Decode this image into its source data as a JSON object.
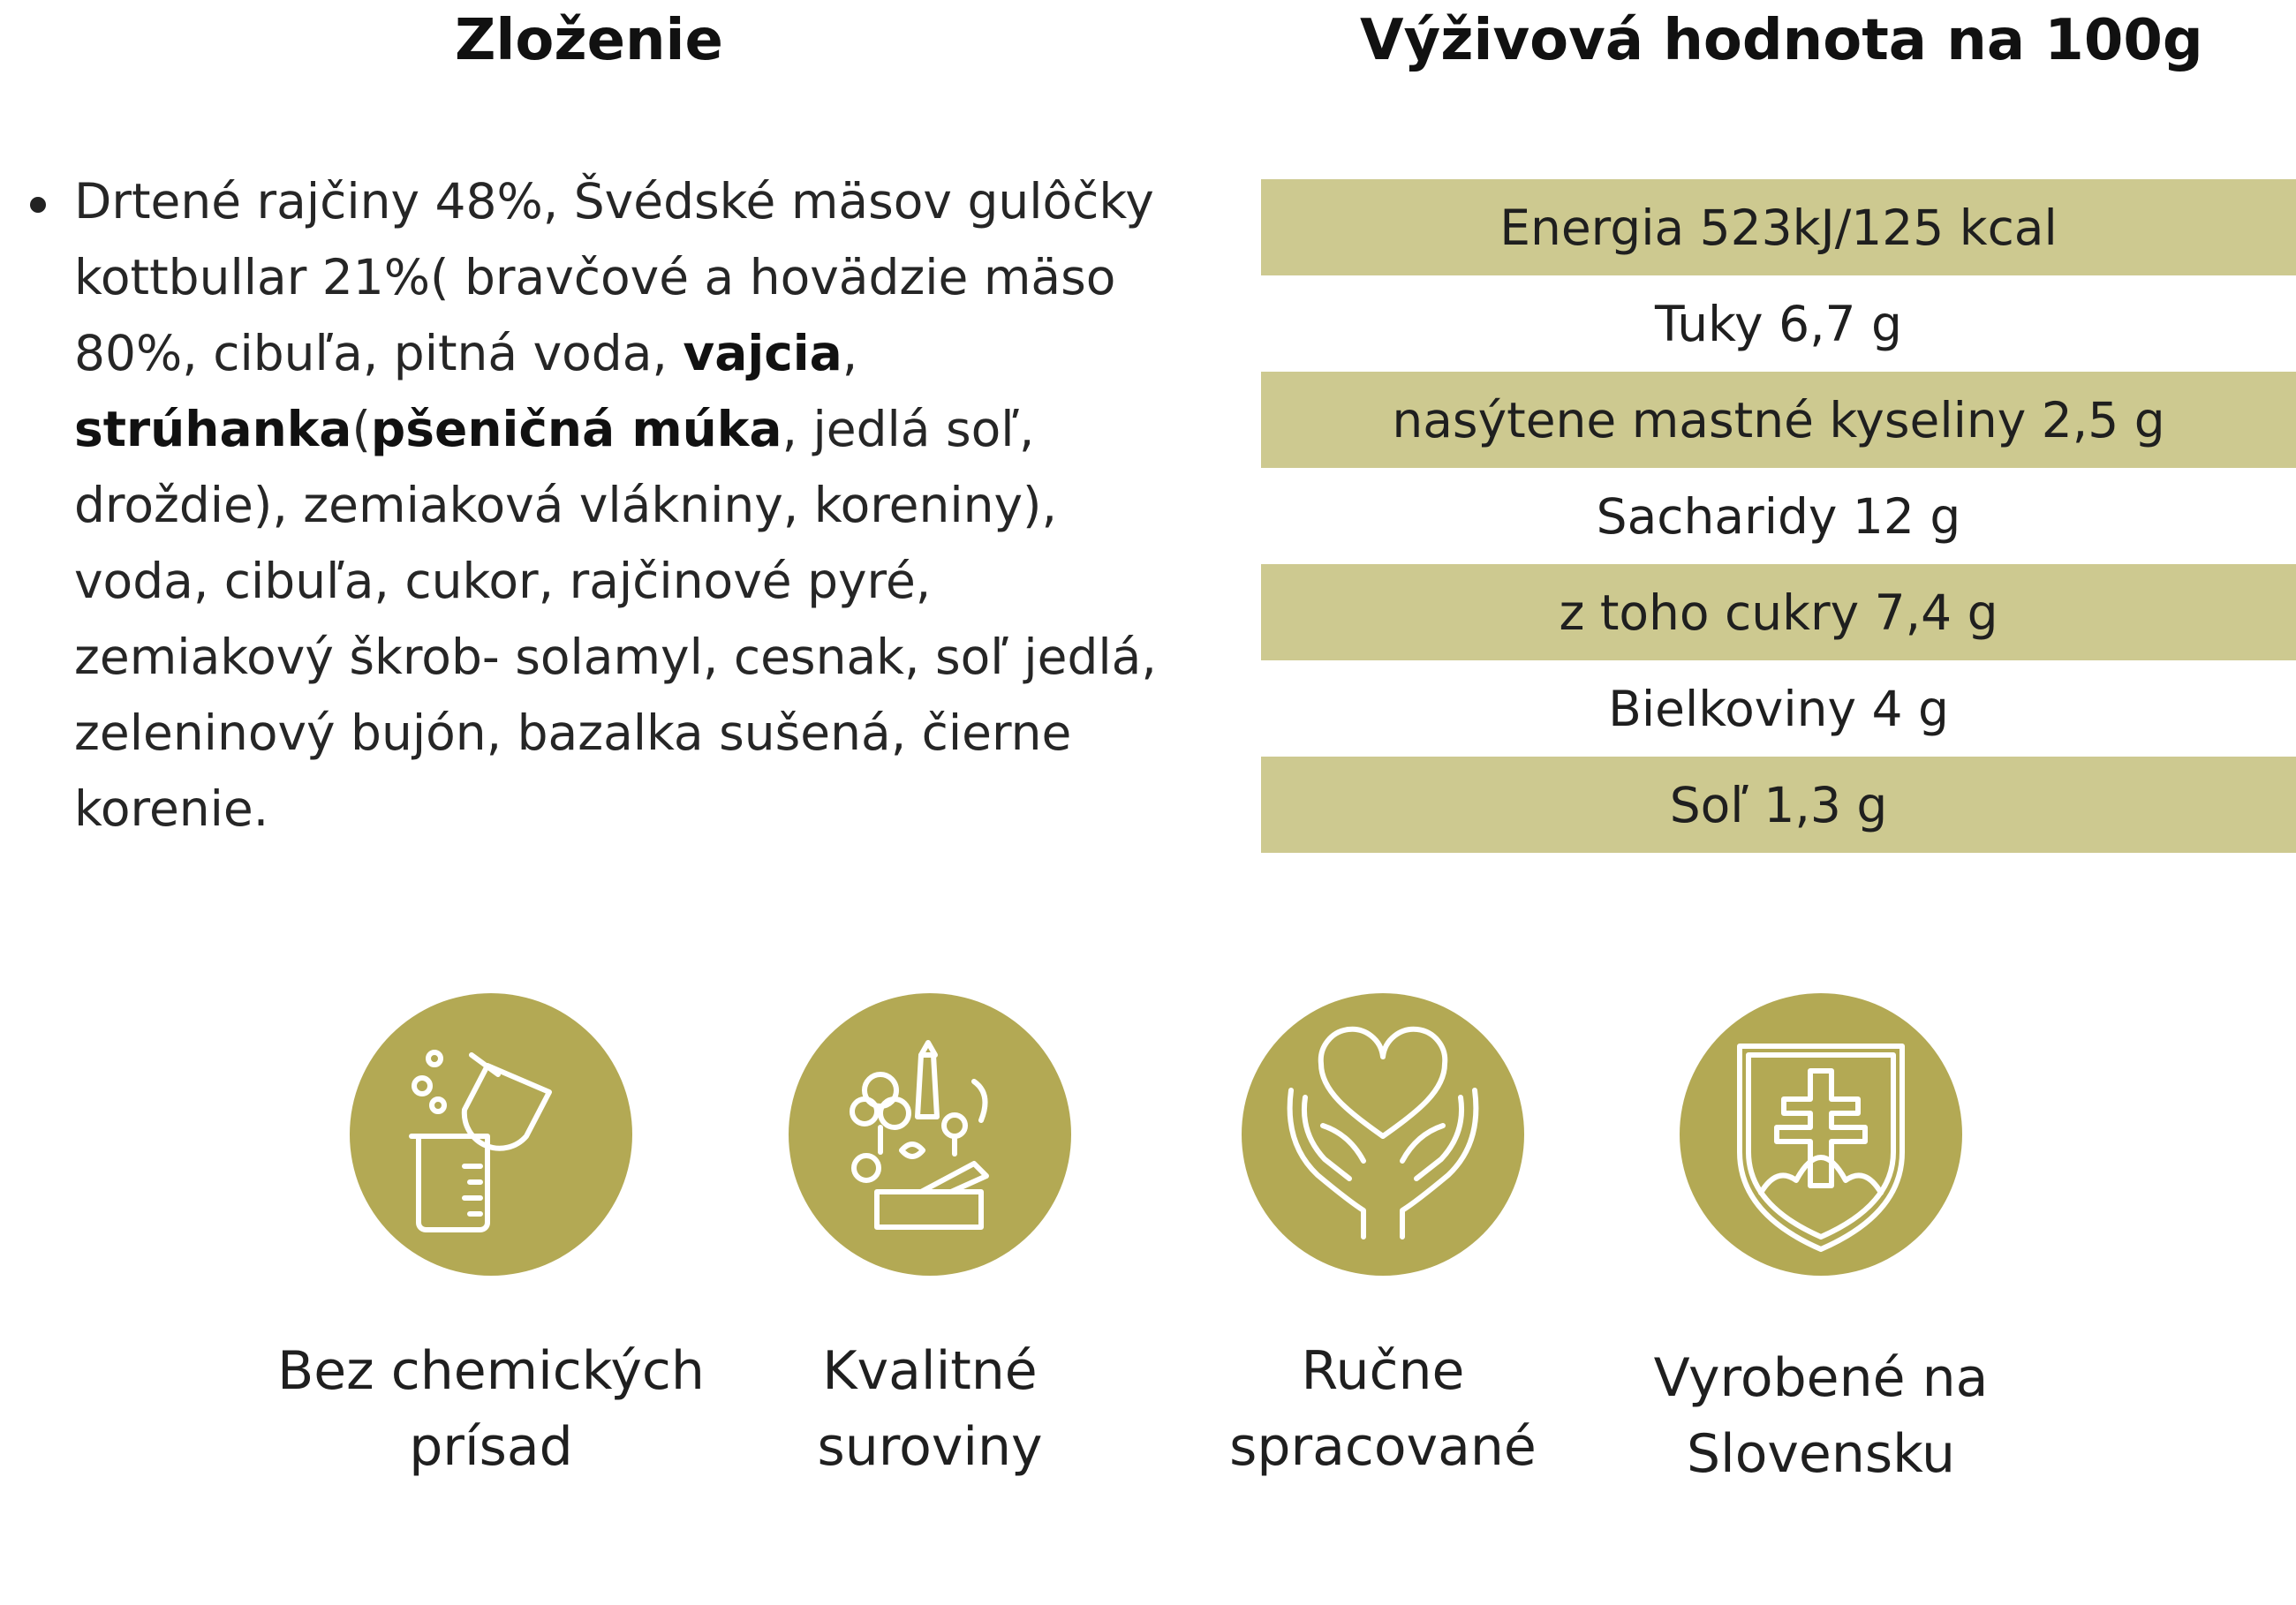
{
  "headings": {
    "ingredients": "Zloženie",
    "nutrition": "Výživová hodnota na 100g"
  },
  "ingredients": {
    "parts": [
      "Drtené rajčiny 48%, Švédské mäsov gulôčky kottbullar 21%( bravčové a hovädzie mäso 80%, cibuľa, pitná voda, ",
      "vajcia",
      ", ",
      "strúhanka",
      "(",
      "pšeničná múka",
      ", jedlá soľ, droždie), zemiaková vlákniny, koreniny), voda, cibuľa, cukor, rajčinové pyré, zemiakový škrob- solamyl, cesnak, soľ jedlá, zeleninový bujón, bazalka sušená, čierne korenie."
    ]
  },
  "nutrition": {
    "rows": [
      "Energia 523kJ/125 kcal",
      "Tuky 6,7 g",
      "nasýtene mastné kyseliny 2,5 g",
      "Sacharidy 12 g",
      "z toho cukry 7,4 g",
      "Bielkoviny 4 g",
      "Soľ 1,3 g"
    ]
  },
  "features": [
    {
      "icon": "chemistry-icon",
      "line1": "Bez chemických",
      "line2": "prísad"
    },
    {
      "icon": "vegetables-icon",
      "line1": "Kvalitné",
      "line2": "suroviny"
    },
    {
      "icon": "heart-hands-icon",
      "line1": "Ručne",
      "line2": "spracované"
    },
    {
      "icon": "slovak-coat-of-arms-icon",
      "line1": "Vyrobené na",
      "line2": "Slovensku"
    }
  ],
  "colors": {
    "row_shade": "#cdc990",
    "icon_background": "#b3a954",
    "icon_stroke": "#ffffff"
  }
}
